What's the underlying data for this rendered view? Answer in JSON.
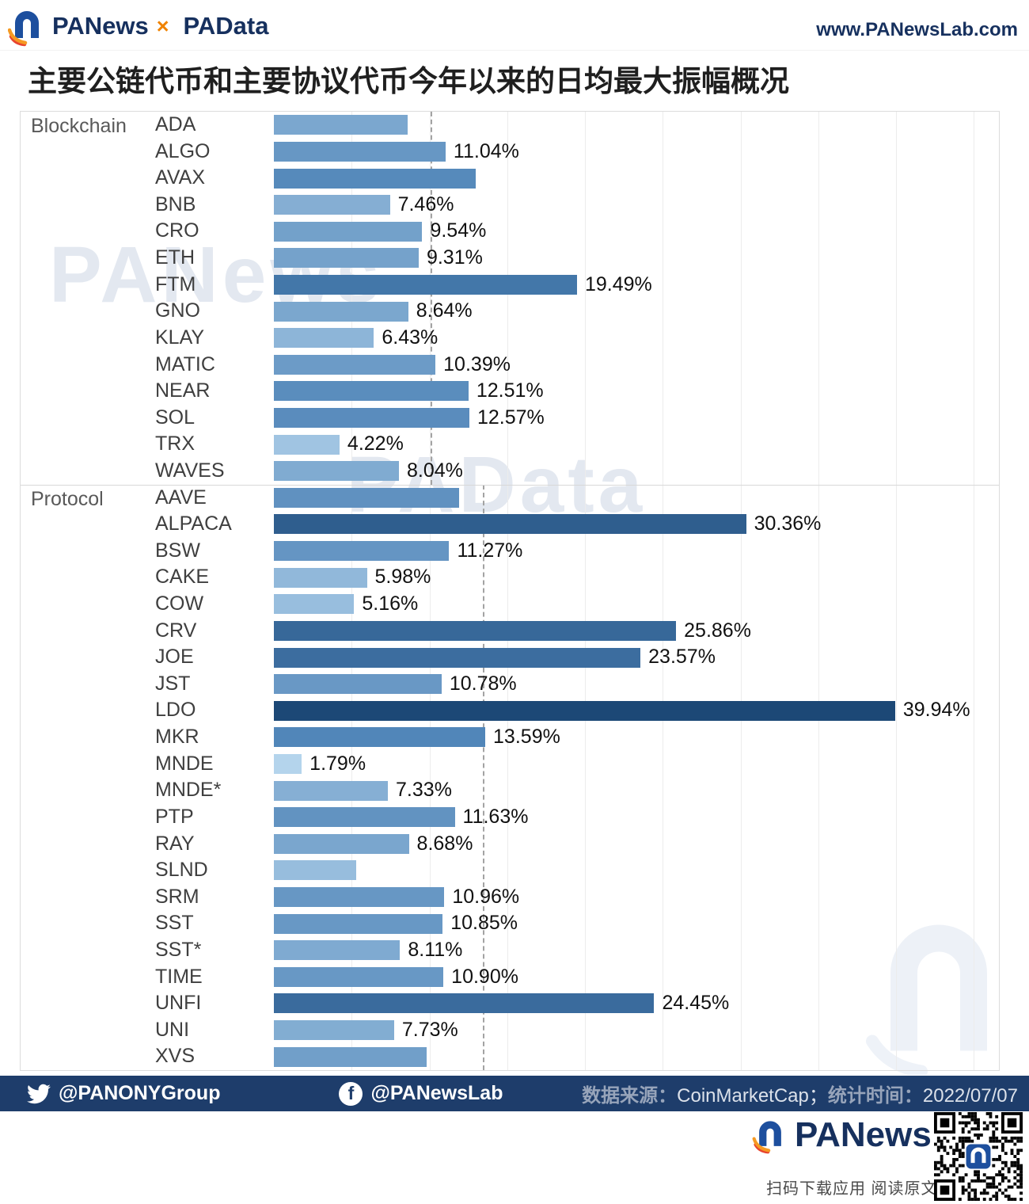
{
  "header": {
    "brand_primary": "PANews",
    "brand_separator": "×",
    "brand_secondary": "PAData",
    "website": "www.PANewsLab.com"
  },
  "title": "主要公链代币和主要协议代币今年以来的日均最大振幅概况",
  "watermarks": {
    "first": "PANews",
    "second": "PAData"
  },
  "chart_data": {
    "type": "bar",
    "orientation": "horizontal",
    "title": "主要公链代币和主要协议代币今年以来的日均最大振幅概况",
    "unit": "%",
    "xlim": [
      0,
      46.8
    ],
    "gridline_step": 5,
    "grid": true,
    "color_scale": [
      {
        "value": 0,
        "color": "#c3e0f4"
      },
      {
        "value": 14,
        "color": "#4e83b7"
      },
      {
        "value": 40,
        "color": "#1c4876"
      }
    ],
    "groups": [
      {
        "label": "Blockchain",
        "average": 10.08,
        "rows": [
          {
            "token": "ADA",
            "value": 8.6,
            "label": ""
          },
          {
            "token": "ALGO",
            "value": 11.04,
            "label": "11.04%"
          },
          {
            "token": "AVAX",
            "value": 13.0,
            "label": ""
          },
          {
            "token": "BNB",
            "value": 7.46,
            "label": "7.46%"
          },
          {
            "token": "CRO",
            "value": 9.54,
            "label": "9.54%"
          },
          {
            "token": "ETH",
            "value": 9.31,
            "label": "9.31%"
          },
          {
            "token": "FTM",
            "value": 19.49,
            "label": "19.49%"
          },
          {
            "token": "GNO",
            "value": 8.64,
            "label": "8.64%"
          },
          {
            "token": "KLAY",
            "value": 6.43,
            "label": "6.43%"
          },
          {
            "token": "MATIC",
            "value": 10.39,
            "label": "10.39%"
          },
          {
            "token": "NEAR",
            "value": 12.51,
            "label": "12.51%"
          },
          {
            "token": "SOL",
            "value": 12.57,
            "label": "12.57%"
          },
          {
            "token": "TRX",
            "value": 4.22,
            "label": "4.22%"
          },
          {
            "token": "WAVES",
            "value": 8.04,
            "label": "8.04%"
          }
        ]
      },
      {
        "label": "Protocol",
        "average": 13.45,
        "rows": [
          {
            "token": "AAVE",
            "value": 11.9,
            "label": ""
          },
          {
            "token": "ALPACA",
            "value": 30.36,
            "label": "30.36%"
          },
          {
            "token": "BSW",
            "value": 11.27,
            "label": "11.27%"
          },
          {
            "token": "CAKE",
            "value": 5.98,
            "label": "5.98%"
          },
          {
            "token": "COW",
            "value": 5.16,
            "label": "5.16%"
          },
          {
            "token": "CRV",
            "value": 25.86,
            "label": "25.86%"
          },
          {
            "token": "JOE",
            "value": 23.57,
            "label": "23.57%"
          },
          {
            "token": "JST",
            "value": 10.78,
            "label": "10.78%"
          },
          {
            "token": "LDO",
            "value": 39.94,
            "label": "39.94%"
          },
          {
            "token": "MKR",
            "value": 13.59,
            "label": "13.59%"
          },
          {
            "token": "MNDE",
            "value": 1.79,
            "label": "1.79%"
          },
          {
            "token": "MNDE*",
            "value": 7.33,
            "label": "7.33%"
          },
          {
            "token": "PTP",
            "value": 11.63,
            "label": "11.63%"
          },
          {
            "token": "RAY",
            "value": 8.68,
            "label": "8.68%"
          },
          {
            "token": "SLND",
            "value": 5.3,
            "label": ""
          },
          {
            "token": "SRM",
            "value": 10.96,
            "label": "10.96%"
          },
          {
            "token": "SST",
            "value": 10.85,
            "label": "10.85%"
          },
          {
            "token": "SST*",
            "value": 8.11,
            "label": "8.11%"
          },
          {
            "token": "TIME",
            "value": 10.9,
            "label": "10.90%"
          },
          {
            "token": "UNFI",
            "value": 24.45,
            "label": "24.45%"
          },
          {
            "token": "UNI",
            "value": 7.73,
            "label": "7.73%"
          },
          {
            "token": "XVS",
            "value": 9.8,
            "label": ""
          }
        ]
      }
    ]
  },
  "footer": {
    "twitter_handle": "@PANONYGroup",
    "facebook_handle": "@PANewsLab",
    "source_label": "数据来源：",
    "source_value": "CoinMarketCap；",
    "time_label": "统计时间：",
    "time_value": "2022/07/07"
  },
  "bottom": {
    "brand": "PANews",
    "qr_caption": "扫码下载应用  阅读原文"
  },
  "colors": {
    "brand_navy": "#16305e",
    "brand_orange": "#f08300",
    "footer_bg": "#1e3d6b",
    "bar_min": "#c3e0f4",
    "bar_max": "#1c4876"
  }
}
